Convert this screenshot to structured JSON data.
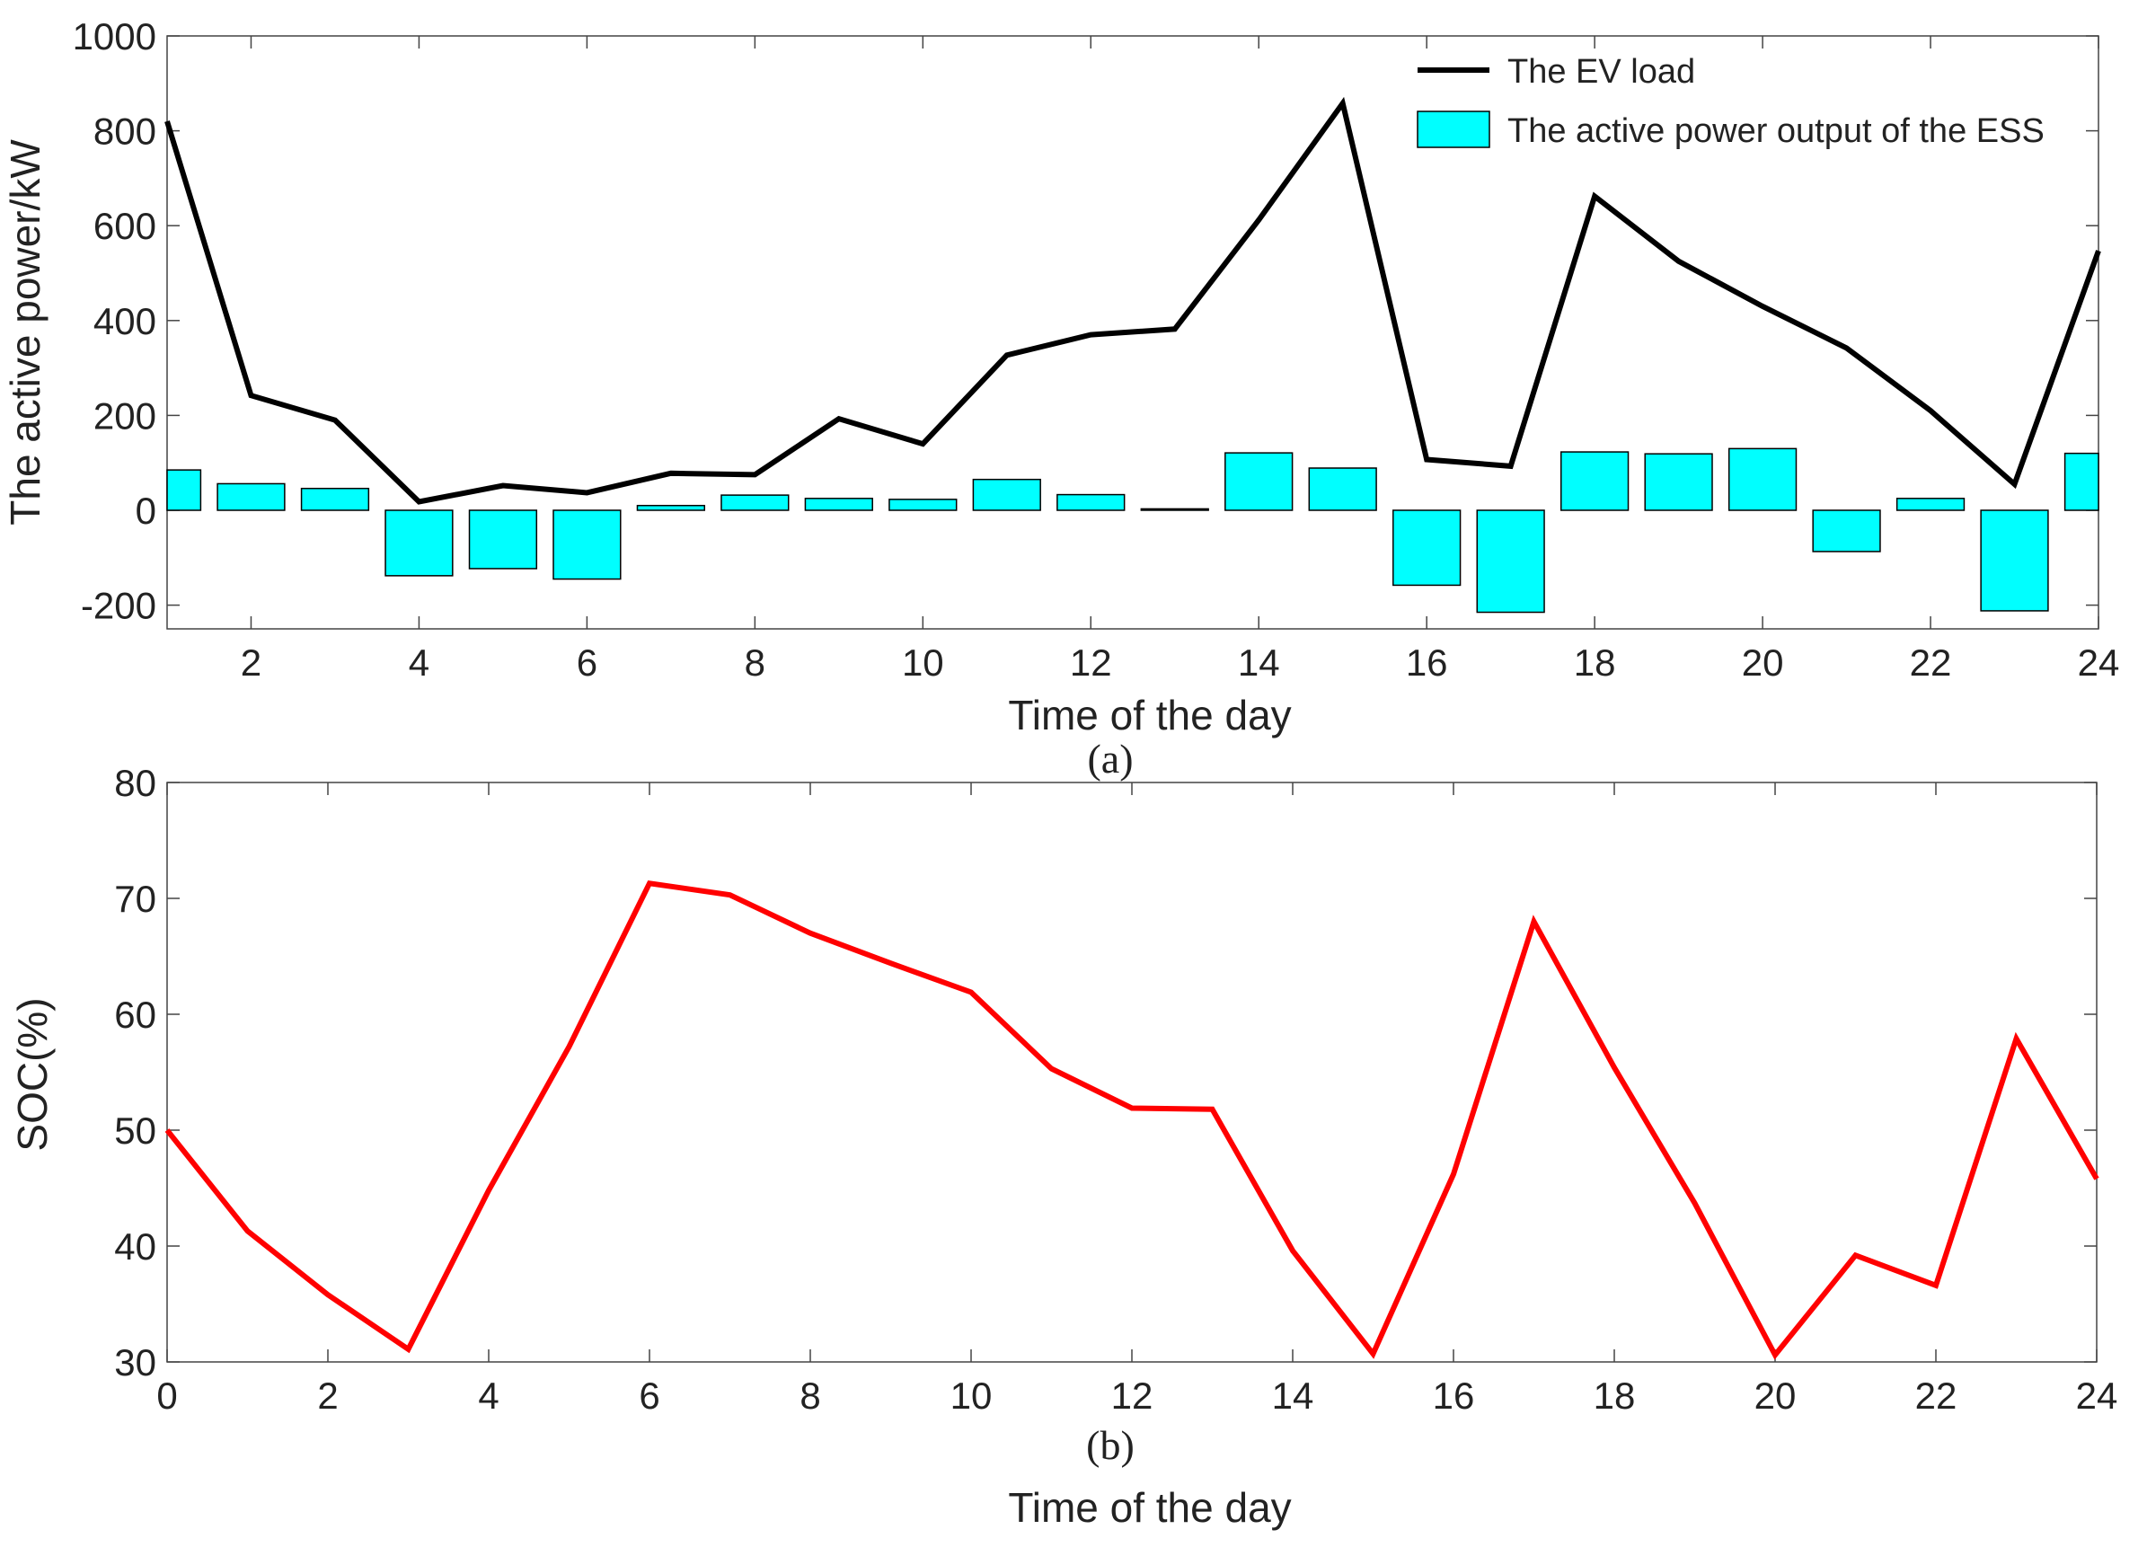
{
  "chart_data": [
    {
      "type": "bar+line",
      "panel": "(a)",
      "caption": "(a)",
      "xlabel": "Time of the day",
      "ylabel": "The active power/kW",
      "xlim": [
        1,
        24
      ],
      "ylim": [
        -250,
        1000
      ],
      "xticks": [
        2,
        4,
        6,
        8,
        10,
        12,
        14,
        16,
        18,
        20,
        22,
        24
      ],
      "yticks": [
        -200,
        0,
        200,
        400,
        600,
        800,
        1000
      ],
      "legend": {
        "position": "top-right",
        "entries": [
          "The EV load",
          "The active power output of the ESS"
        ]
      },
      "colors": {
        "line": "#000000",
        "bar": "#00FFFF",
        "bar_edge": "#000000"
      },
      "x": [
        1,
        2,
        3,
        4,
        5,
        6,
        7,
        8,
        9,
        10,
        11,
        12,
        13,
        14,
        15,
        16,
        17,
        18,
        19,
        20,
        21,
        22,
        23,
        24
      ],
      "series": [
        {
          "name": "The EV load",
          "kind": "line",
          "values": [
            820,
            242,
            190,
            18,
            52,
            37,
            78,
            75,
            193,
            140,
            327,
            370,
            382,
            612,
            858,
            107,
            93,
            662,
            525,
            430,
            342,
            210,
            55,
            547
          ]
        },
        {
          "name": "The active power output of the ESS",
          "kind": "bar",
          "values": [
            85,
            56,
            46,
            -138,
            -123,
            -145,
            10,
            32,
            25,
            23,
            65,
            33,
            3,
            121,
            89,
            -158,
            -215,
            123,
            119,
            130,
            -87,
            25,
            -212,
            120
          ]
        }
      ]
    },
    {
      "type": "line",
      "panel": "(b)",
      "caption": "(b)",
      "xlabel": "Time of the day",
      "ylabel": "SOC(%)",
      "xlim": [
        0,
        24
      ],
      "ylim": [
        30,
        80
      ],
      "xticks": [
        0,
        2,
        4,
        6,
        8,
        10,
        12,
        14,
        16,
        18,
        20,
        22,
        24
      ],
      "yticks": [
        30,
        40,
        50,
        60,
        70,
        80
      ],
      "colors": {
        "line": "#FF0000"
      },
      "x": [
        0,
        1,
        2,
        3,
        4,
        5,
        6,
        7,
        8,
        9,
        10,
        11,
        12,
        13,
        14,
        15,
        16,
        17,
        18,
        19,
        20,
        21,
        22,
        23,
        24
      ],
      "series": [
        {
          "name": "SOC",
          "kind": "line",
          "values": [
            50,
            41.3,
            35.8,
            31.1,
            44.8,
            57.2,
            71.3,
            70.3,
            67,
            64.4,
            61.9,
            55.3,
            51.9,
            51.8,
            39.6,
            30.7,
            46.2,
            68,
            55.4,
            43.7,
            30.6,
            39.2,
            36.6,
            57.9,
            45.8
          ]
        }
      ]
    }
  ]
}
